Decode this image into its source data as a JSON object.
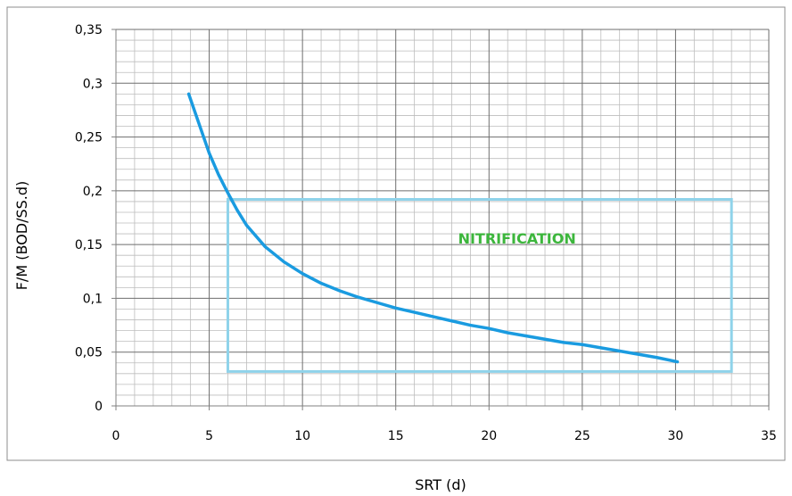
{
  "chart_data": {
    "type": "line",
    "title": "",
    "xlabel": "SRT (d)",
    "ylabel": "F/M (BOD/SS.d)",
    "xlim": [
      0,
      35
    ],
    "ylim": [
      0,
      0.35
    ],
    "xticks": [
      0,
      5,
      10,
      15,
      20,
      25,
      30,
      35
    ],
    "xtick_labels": [
      "0",
      "5",
      "10",
      "15",
      "20",
      "25",
      "30",
      "35"
    ],
    "yticks": [
      0,
      0.05,
      0.1,
      0.15,
      0.2,
      0.25,
      0.3,
      0.35
    ],
    "ytick_labels": [
      "0",
      "0,05",
      "0,1",
      "0,15",
      "0,2",
      "0,25",
      "0,3",
      "0,35"
    ],
    "grid": true,
    "legend": "none",
    "series": [
      {
        "color": "#1a9be0",
        "x": [
          3.9,
          4.5,
          5,
          5.5,
          6,
          6.5,
          7,
          8,
          9,
          10,
          11,
          12,
          13,
          14,
          15,
          16,
          17,
          18,
          19,
          20,
          21,
          22,
          23,
          24,
          25,
          26,
          27,
          28,
          29,
          30.1
        ],
        "y": [
          0.29,
          0.26,
          0.235,
          0.215,
          0.198,
          0.182,
          0.168,
          0.148,
          0.134,
          0.123,
          0.114,
          0.107,
          0.101,
          0.096,
          0.091,
          0.087,
          0.083,
          0.079,
          0.075,
          0.072,
          0.068,
          0.065,
          0.062,
          0.059,
          0.057,
          0.054,
          0.051,
          0.048,
          0.045,
          0.041
        ]
      }
    ],
    "annotations": [
      {
        "type": "box",
        "x": [
          6,
          33
        ],
        "y": [
          0.032,
          0.192
        ],
        "color": "#8fd3ea",
        "label": "NITRIFICATION",
        "label_color": "#3cb63c",
        "label_at": [
          21.5,
          0.151
        ]
      }
    ]
  }
}
